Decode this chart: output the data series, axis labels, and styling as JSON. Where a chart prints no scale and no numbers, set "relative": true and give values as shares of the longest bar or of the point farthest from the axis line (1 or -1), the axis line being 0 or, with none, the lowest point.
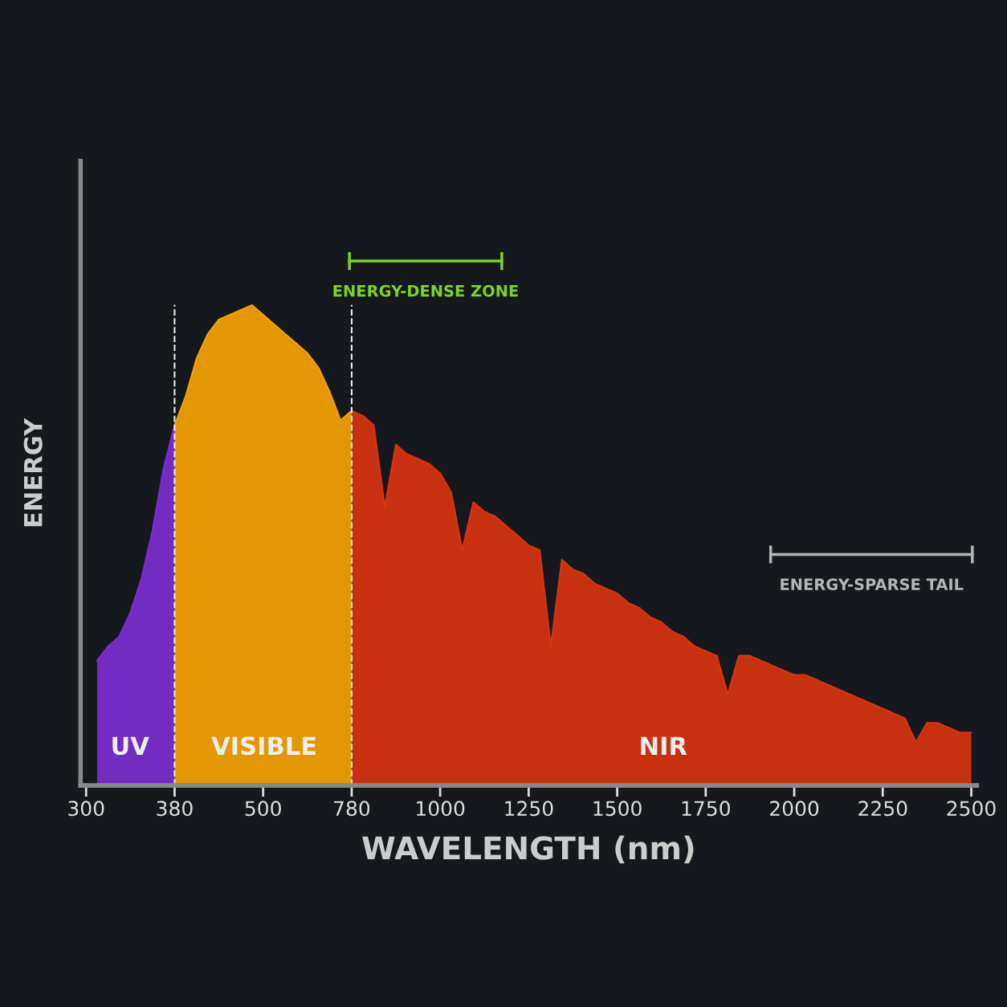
{
  "chart_data": {
    "type": "area",
    "relative": true,
    "xlabel": "WAVELENGTH (nm)",
    "ylabel": "ENERGY",
    "grid": false,
    "legend": false,
    "categories": [
      "300",
      null,
      null,
      null,
      null,
      null,
      null,
      null,
      "380",
      null,
      null,
      null,
      null,
      null,
      null,
      null,
      "500",
      null,
      null,
      null,
      null,
      null,
      null,
      null,
      "780",
      null,
      null,
      null,
      null,
      null,
      null,
      null,
      "1000",
      null,
      null,
      null,
      null,
      null,
      null,
      null,
      "1250",
      null,
      null,
      null,
      null,
      null,
      null,
      null,
      "1500",
      null,
      null,
      null,
      null,
      null,
      null,
      null,
      "1750",
      null,
      null,
      null,
      null,
      null,
      null,
      null,
      "2000",
      null,
      null,
      null,
      null,
      null,
      null,
      null,
      "2250",
      null,
      null,
      null,
      null,
      null,
      null,
      null,
      "2500"
    ],
    "series": [
      {
        "color": "#7b2fd0",
        "values": [
          null,
          0.26,
          0.29,
          0.31,
          0.36,
          0.43,
          0.53,
          0.66,
          0.75,
          null,
          null,
          null,
          null,
          null,
          null,
          null,
          null,
          null,
          null,
          null,
          null,
          null,
          null,
          null,
          null,
          null,
          null,
          null,
          null,
          null,
          null,
          null,
          null,
          null,
          null,
          null,
          null,
          null,
          null,
          null,
          null,
          null,
          null,
          null,
          null,
          null,
          null,
          null,
          null,
          null,
          null,
          null,
          null,
          null,
          null,
          null,
          null,
          null,
          null,
          null,
          null,
          null,
          null,
          null,
          null,
          null,
          null,
          null,
          null,
          null,
          null,
          null,
          null,
          null,
          null,
          null,
          null,
          null,
          null,
          null,
          null
        ]
      },
      {
        "color": "#f5a300",
        "values": [
          null,
          null,
          null,
          null,
          null,
          null,
          null,
          null,
          0.75,
          0.81,
          0.89,
          0.94,
          0.97,
          0.98,
          0.99,
          1,
          0.98,
          0.96,
          0.94,
          0.92,
          0.9,
          0.87,
          0.82,
          0.76,
          0.78,
          null,
          null,
          null,
          null,
          null,
          null,
          null,
          null,
          null,
          null,
          null,
          null,
          null,
          null,
          null,
          null,
          null,
          null,
          null,
          null,
          null,
          null,
          null,
          null,
          null,
          null,
          null,
          null,
          null,
          null,
          null,
          null,
          null,
          null,
          null,
          null,
          null,
          null,
          null,
          null,
          null,
          null,
          null,
          null,
          null,
          null,
          null,
          null,
          null,
          null,
          null,
          null,
          null,
          null,
          null,
          null
        ]
      },
      {
        "color": "#d8340f",
        "values": [
          null,
          null,
          null,
          null,
          null,
          null,
          null,
          null,
          null,
          null,
          null,
          null,
          null,
          null,
          null,
          null,
          null,
          null,
          null,
          null,
          null,
          null,
          null,
          null,
          0.78,
          0.77,
          0.75,
          0.58,
          0.71,
          0.69,
          0.68,
          0.67,
          0.65,
          0.61,
          0.49,
          0.59,
          0.57,
          0.56,
          0.54,
          0.52,
          0.5,
          0.49,
          0.29,
          0.47,
          0.45,
          0.44,
          0.42,
          0.41,
          0.4,
          0.38,
          0.37,
          0.35,
          0.34,
          0.32,
          0.31,
          0.29,
          0.28,
          0.27,
          0.19,
          0.27,
          0.27,
          0.26,
          0.25,
          0.24,
          0.23,
          0.23,
          0.22,
          0.21,
          0.2,
          0.19,
          0.18,
          0.17,
          0.16,
          0.15,
          0.14,
          0.09,
          0.13,
          0.13,
          0.12,
          0.11,
          0.11
        ]
      }
    ],
    "ref_lines": [
      {
        "axis": "x",
        "value": "380",
        "color": "#e8e8e8",
        "line_style": "dashed"
      },
      {
        "axis": "x",
        "value": "780",
        "color": "#e8e8e8",
        "line_style": "dashed"
      }
    ],
    "annotations": [
      "UV",
      "VISIBLE",
      "NIR",
      "ENERGY-DENSE ZONE",
      "ENERGY-SPARSE TAIL"
    ]
  }
}
